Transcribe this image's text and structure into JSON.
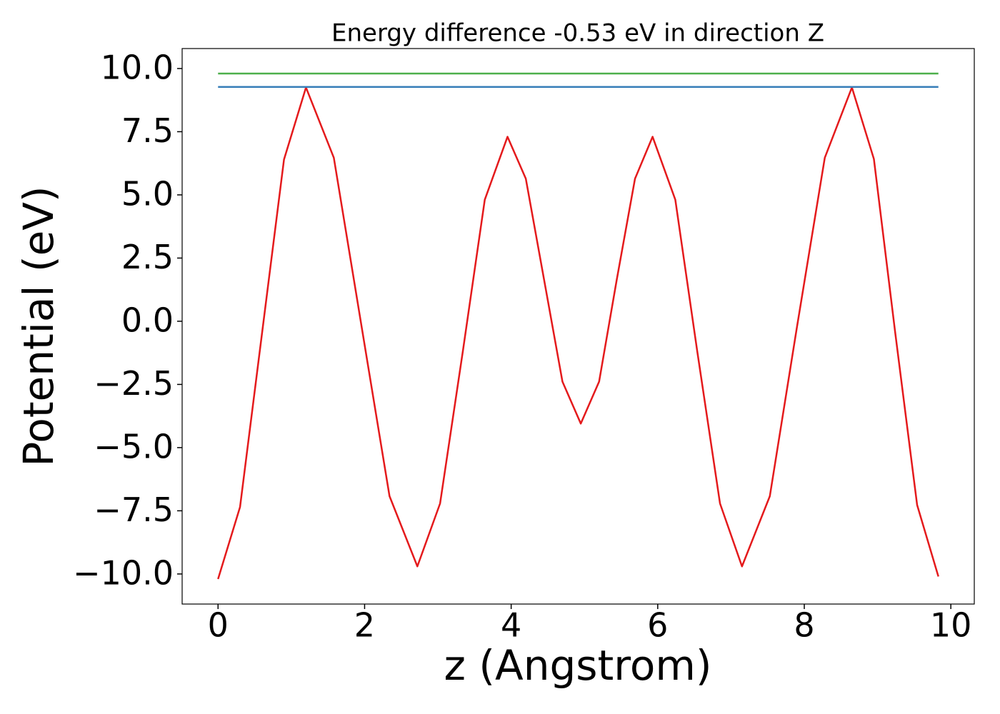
{
  "chart_data": {
    "type": "line",
    "title": "Energy difference -0.53 eV in direction Z",
    "xlabel": "z (Angstrom)",
    "ylabel": "Potential (eV)",
    "xlim": [
      -0.49,
      10.32
    ],
    "ylim": [
      -11.19,
      10.79
    ],
    "xticks": [
      0,
      2,
      4,
      6,
      8,
      10
    ],
    "yticks": [
      {
        "value": 10,
        "label": "10.0"
      },
      {
        "value": 7.5,
        "label": "7.5"
      },
      {
        "value": 5,
        "label": "5.0"
      },
      {
        "value": 2.5,
        "label": "2.5"
      },
      {
        "value": 0,
        "label": "0.0"
      },
      {
        "value": -2.5,
        "label": "−2.5"
      },
      {
        "value": -5,
        "label": "−5.0"
      },
      {
        "value": -7.5,
        "label": "−7.5"
      },
      {
        "value": -10,
        "label": "−10.0"
      }
    ],
    "series": [
      {
        "color": "#e41a1c",
        "x": [
          0,
          0.3,
          0.6,
          0.9,
          1.2,
          1.58,
          1.96,
          2.34,
          2.72,
          3.03,
          3.34,
          3.64,
          3.95,
          4.2,
          4.45,
          4.7,
          4.95,
          5.2,
          5.44,
          5.69,
          5.93,
          6.24,
          6.54,
          6.85,
          7.15,
          7.53,
          7.9,
          8.28,
          8.65,
          8.95,
          9.24,
          9.54,
          9.83
        ],
        "values": [
          -10.2,
          -7.35,
          -0.48,
          6.4,
          9.25,
          6.47,
          -0.23,
          -6.92,
          -9.7,
          -7.21,
          -1.2,
          4.81,
          7.3,
          5.64,
          1.63,
          -2.39,
          -4.05,
          -2.39,
          1.63,
          5.64,
          7.3,
          4.81,
          -1.2,
          -7.21,
          -9.7,
          -6.92,
          -0.23,
          6.47,
          9.25,
          6.42,
          -0.43,
          -7.27,
          -10.1
        ]
      },
      {
        "color": "#4daf4a",
        "x": [
          0,
          9.83
        ],
        "values": [
          9.8,
          9.8
        ]
      },
      {
        "color": "#377eb8",
        "x": [
          0,
          9.83
        ],
        "values": [
          9.27,
          9.27
        ]
      }
    ]
  }
}
